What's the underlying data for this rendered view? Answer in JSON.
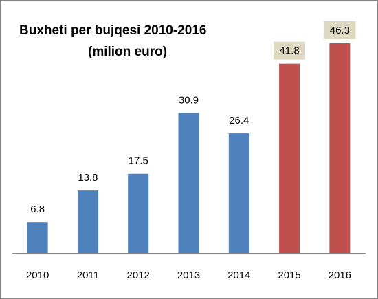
{
  "chart_data": {
    "type": "bar",
    "title": [
      "Buxheti per bujqesi 2010-2016",
      "(milion euro)"
    ],
    "categories": [
      "2010",
      "2011",
      "2012",
      "2013",
      "2014",
      "2015",
      "2016"
    ],
    "values": [
      6.8,
      13.8,
      17.5,
      30.9,
      26.4,
      41.8,
      46.3
    ],
    "colors": [
      "#4f81bd",
      "#4f81bd",
      "#4f81bd",
      "#4f81bd",
      "#4f81bd",
      "#c0504d",
      "#c0504d"
    ],
    "label_backgrounds": [
      null,
      null,
      null,
      null,
      null,
      "#ddd9c3",
      "#ddd9c3"
    ]
  }
}
